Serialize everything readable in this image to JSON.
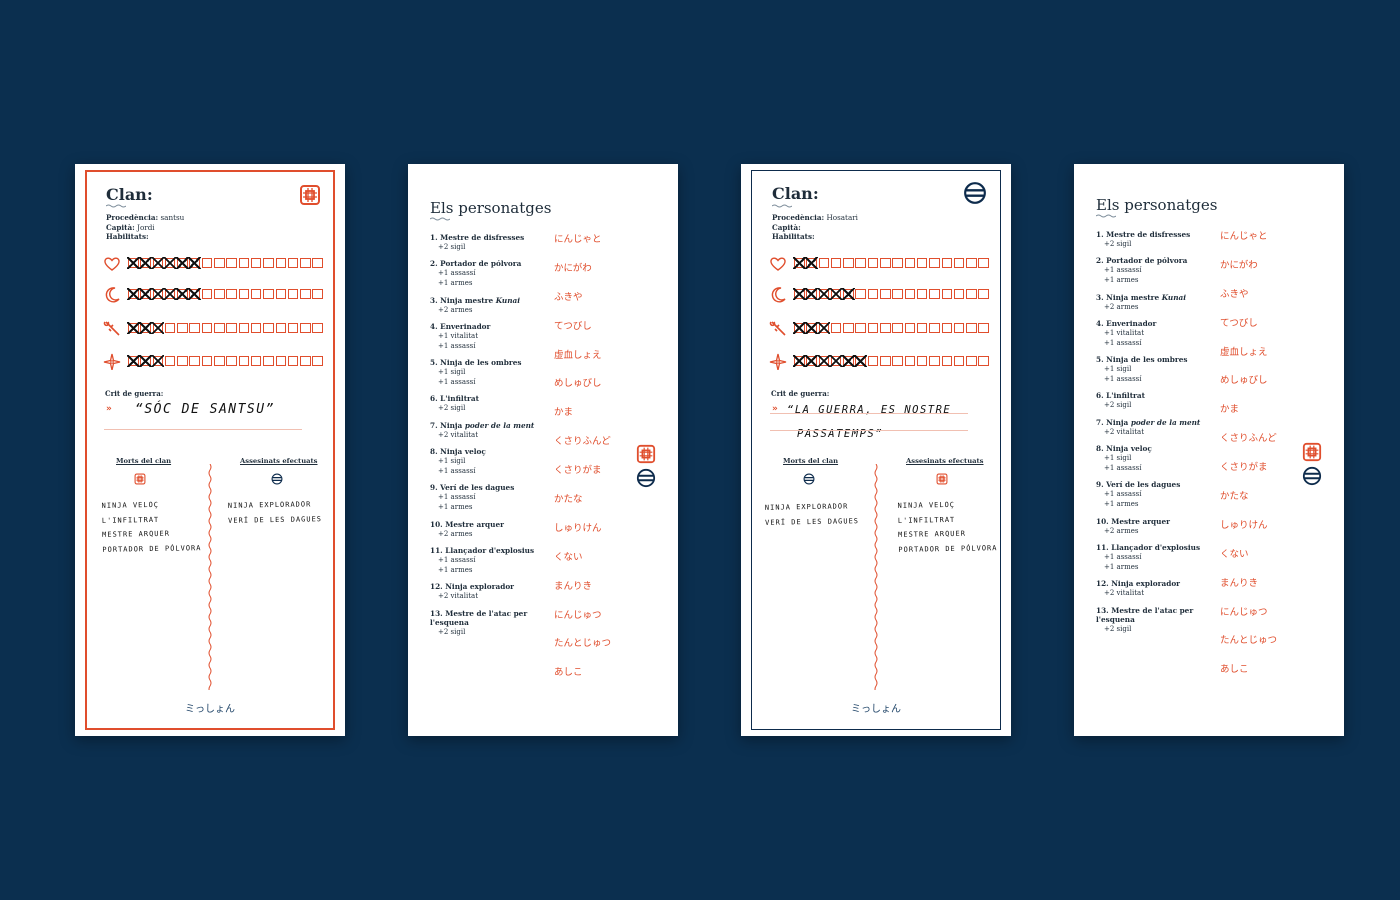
{
  "colors": {
    "background": "#0b2f4f",
    "accent_red": "#e04e2d",
    "navy": "#0d2b4c"
  },
  "cards": [
    {
      "type": "clan_sheet",
      "title": "Clan:",
      "emblem": "red-square-clan-emblem",
      "procedencia_label": "Procedència:",
      "procedencia_value": "santsu",
      "capita_label": "Capità:",
      "capita_value": "Jordi",
      "habilitats_label": "Habilitats:",
      "tracks": [
        {
          "icon": "heart-icon",
          "total": 16,
          "marked": 6
        },
        {
          "icon": "moon-icon",
          "total": 16,
          "marked": 6
        },
        {
          "icon": "kunai-icon",
          "total": 16,
          "marked": 3
        },
        {
          "icon": "shuriken-icon",
          "total": 16,
          "marked": 3
        }
      ],
      "crit_label": "Crit de guerra:",
      "crit_arrow": "»",
      "crit_lines": [
        "“SÓC  DE  SANTSU”"
      ],
      "morts_label": "Morts del clan",
      "assassinats_label": "Assesinats efectuats",
      "morts_icon": "red-square-clan-emblem",
      "assassinats_icon": "navy-circle-clan-emblem",
      "morts": [
        "NINJA VELOÇ",
        "L'INFILTRAT",
        "MESTRE ARQUER",
        "PORTADOR DE PÓLVORA"
      ],
      "assassinats": [
        "NINJA EXPLORADOR",
        "VERÍ DE LES DAGUES"
      ],
      "footer": "ミっしょん"
    },
    {
      "type": "characters",
      "title": "Els personatges",
      "characters": [
        {
          "num": "1.",
          "name": "Mestre de disfresses",
          "name_italic": "",
          "bonuses": [
            "+2 sigil"
          ],
          "kana": "にんじゃと"
        },
        {
          "num": "2.",
          "name": "Portador de pólvora",
          "name_italic": "",
          "bonuses": [
            "+1 assassí",
            "+1 armes"
          ],
          "kana": "かにがわ"
        },
        {
          "num": "3.",
          "name": "Ninja mestre ",
          "name_italic": "Kunai",
          "bonuses": [
            "+2 armes"
          ],
          "kana": "ふきや"
        },
        {
          "num": "4.",
          "name": "Enverinador",
          "name_italic": "",
          "bonuses": [
            "+1 vitalitat",
            "+1 assassí"
          ],
          "kana": "てつびし"
        },
        {
          "num": "5.",
          "name": "Ninja de les ombres",
          "name_italic": "",
          "bonuses": [
            "+1 sigil",
            "+1 assassí"
          ],
          "kana": "虚血しょえ"
        },
        {
          "num": "6.",
          "name": "L'infiltrat",
          "name_italic": "",
          "bonuses": [
            "+2 sigil"
          ],
          "kana": "めしゅびし"
        },
        {
          "num": "7.",
          "name": "Ninja ",
          "name_italic": "poder de la ment",
          "bonuses": [
            "+2 vitalitat"
          ],
          "kana": "かま"
        },
        {
          "num": "8.",
          "name": "Ninja veloç",
          "name_italic": "",
          "bonuses": [
            "+1 sigil",
            "+1 assassí"
          ],
          "kana": "くさりふんど"
        },
        {
          "num": "9.",
          "name": "Verí de les dagues",
          "name_italic": "",
          "bonuses": [
            "+1 assassí",
            "+1 armes"
          ],
          "kana": "くさりがま"
        },
        {
          "num": "10.",
          "name": "Mestre arquer",
          "name_italic": "",
          "bonuses": [
            "+2 armes"
          ],
          "kana": "かたな"
        },
        {
          "num": "11.",
          "name": "Llançador d'explosius",
          "name_italic": "",
          "bonuses": [
            "+1 assassí",
            "+1 armes"
          ],
          "kana": "しゅりけん"
        },
        {
          "num": "12.",
          "name": "Ninja explorador",
          "name_italic": "",
          "bonuses": [
            "+2 vitalitat"
          ],
          "kana": "くない"
        },
        {
          "num": "13.",
          "name": "Mestre de l'atac per l'esquena",
          "name_italic": "",
          "bonuses": [
            "+2 sigil"
          ],
          "kana": "まんりき"
        }
      ],
      "extra_kana": [
        "にんじゅつ",
        "たんとじゅつ",
        "あしこ"
      ],
      "side_icons": [
        "red-square-clan-emblem",
        "navy-circle-clan-emblem"
      ]
    },
    {
      "type": "clan_sheet",
      "title": "Clan:",
      "emblem": "navy-circle-clan-emblem",
      "procedencia_label": "Procedència:",
      "procedencia_value": "Hosatari",
      "capita_label": "Capità:",
      "capita_value": "",
      "habilitats_label": "Habilitats:",
      "tracks": [
        {
          "icon": "heart-icon",
          "total": 16,
          "marked": 2
        },
        {
          "icon": "moon-icon",
          "total": 16,
          "marked": 5
        },
        {
          "icon": "kunai-icon",
          "total": 16,
          "marked": 3
        },
        {
          "icon": "shuriken-icon",
          "total": 16,
          "marked": 6
        }
      ],
      "crit_label": "Crit de guerra:",
      "crit_arrow": "»",
      "crit_lines": [
        "“LA  GUERRA,  ES  NOSTRE",
        "PASSATEMPS”"
      ],
      "morts_label": "Morts del clan",
      "assassinats_label": "Assesinats efectuats",
      "morts_icon": "navy-circle-clan-emblem",
      "assassinats_icon": "red-square-clan-emblem",
      "morts": [
        "NINJA EXPLORADOR",
        "VERÍ DE LES DAGUES"
      ],
      "assassinats": [
        "NINJA VELOÇ",
        "L'INFILTRAT",
        "MESTRE ARQUER",
        "PORTADOR DE PÓLVORA"
      ],
      "footer": "ミっしょん"
    },
    {
      "type": "characters",
      "title": "Els personatges",
      "characters": [
        {
          "num": "1.",
          "name": "Mestre de disfresses",
          "name_italic": "",
          "bonuses": [
            "+2 sigil"
          ],
          "kana": "にんじゃと"
        },
        {
          "num": "2.",
          "name": "Portador de pólvora",
          "name_italic": "",
          "bonuses": [
            "+1 assassí",
            "+1 armes"
          ],
          "kana": "かにがわ"
        },
        {
          "num": "3.",
          "name": "Ninja mestre ",
          "name_italic": "Kunai",
          "bonuses": [
            "+2 armes"
          ],
          "kana": "ふきや"
        },
        {
          "num": "4.",
          "name": "Enverinador",
          "name_italic": "",
          "bonuses": [
            "+1 vitalitat",
            "+1 assassí"
          ],
          "kana": "てつびし"
        },
        {
          "num": "5.",
          "name": "Ninja de les ombres",
          "name_italic": "",
          "bonuses": [
            "+1 sigil",
            "+1 assassí"
          ],
          "kana": "虚血しょえ"
        },
        {
          "num": "6.",
          "name": "L'infiltrat",
          "name_italic": "",
          "bonuses": [
            "+2 sigil"
          ],
          "kana": "めしゅびし"
        },
        {
          "num": "7.",
          "name": "Ninja ",
          "name_italic": "poder de la ment",
          "bonuses": [
            "+2 vitalitat"
          ],
          "kana": "かま"
        },
        {
          "num": "8.",
          "name": "Ninja veloç",
          "name_italic": "",
          "bonuses": [
            "+1 sigil",
            "+1 assassí"
          ],
          "kana": "くさりふんど"
        },
        {
          "num": "9.",
          "name": "Verí de les dagues",
          "name_italic": "",
          "bonuses": [
            "+1 assassí",
            "+1 armes"
          ],
          "kana": "くさりがま"
        },
        {
          "num": "10.",
          "name": "Mestre arquer",
          "name_italic": "",
          "bonuses": [
            "+2 armes"
          ],
          "kana": "かたな"
        },
        {
          "num": "11.",
          "name": "Llançador d'explosius",
          "name_italic": "",
          "bonuses": [
            "+1 assassí",
            "+1 armes"
          ],
          "kana": "しゅりけん"
        },
        {
          "num": "12.",
          "name": "Ninja explorador",
          "name_italic": "",
          "bonuses": [
            "+2 vitalitat"
          ],
          "kana": "くない"
        },
        {
          "num": "13.",
          "name": "Mestre de l'atac per l'esquena",
          "name_italic": "",
          "bonuses": [
            "+2 sigil"
          ],
          "kana": "まんりき"
        }
      ],
      "extra_kana": [
        "にんじゅつ",
        "たんとじゅつ",
        "あしこ"
      ],
      "side_icons": [
        "red-square-clan-emblem",
        "navy-circle-clan-emblem"
      ]
    }
  ]
}
